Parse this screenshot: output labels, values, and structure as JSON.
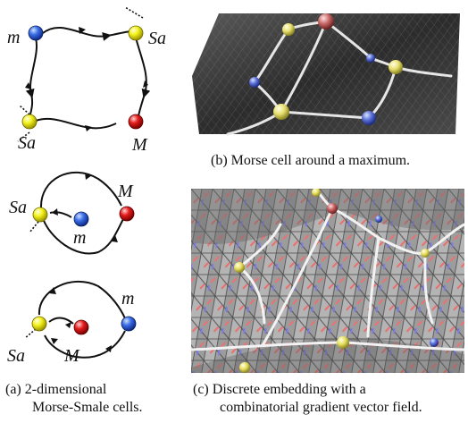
{
  "labels": {
    "m": "m",
    "Sa": "Sa",
    "M": "M"
  },
  "captions": {
    "a_line1": "(a) 2-dimensional",
    "a_line2": "Morse-Smale cells.",
    "b": "(b) Morse cell around a maximum.",
    "c_line1": "(c) Discrete embedding with a",
    "c_line2": "combinatorial gradient vector field."
  },
  "colors": {
    "minimum": "#2f5fd6",
    "saddle": "#f2f21a",
    "maximum": "#e01818",
    "surface_dark": "#3c3c3c",
    "mesh_light": "#b8b8b8"
  }
}
